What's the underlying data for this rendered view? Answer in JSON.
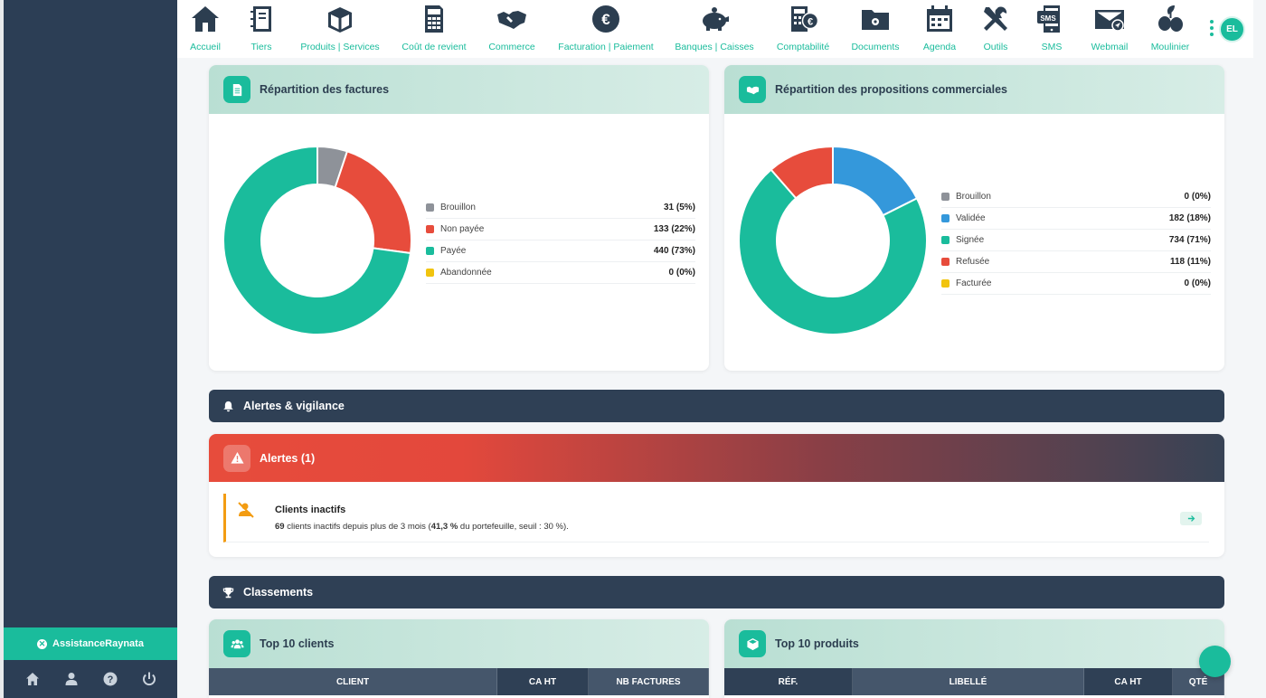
{
  "nav": [
    {
      "label": "Accueil",
      "icon": "home-icon"
    },
    {
      "label": "Tiers",
      "icon": "address-book-icon"
    },
    {
      "label": "Produits | Services",
      "icon": "box-icon"
    },
    {
      "label": "Coût de revient",
      "icon": "calculator-icon"
    },
    {
      "label": "Commerce",
      "icon": "handshake-icon"
    },
    {
      "label": "Facturation | Paiement",
      "icon": "euro-icon"
    },
    {
      "label": "Banques | Caisses",
      "icon": "piggy-bank-icon"
    },
    {
      "label": "Comptabilité",
      "icon": "accounting-icon"
    },
    {
      "label": "Documents",
      "icon": "folder-icon"
    },
    {
      "label": "Agenda",
      "icon": "calendar-icon"
    },
    {
      "label": "Outils",
      "icon": "tools-icon"
    },
    {
      "label": "SMS",
      "icon": "sms-icon"
    },
    {
      "label": "Webmail",
      "icon": "mail-icon"
    },
    {
      "label": "Moulinier",
      "icon": "olive-icon"
    }
  ],
  "user": {
    "initials": "EL"
  },
  "sidebar": {
    "assist_label": "AssistanceRaynata"
  },
  "factures": {
    "title": "Répartition des factures",
    "items": [
      {
        "name": "Brouillon",
        "count": 31,
        "display": "31 (5%)",
        "color": "#8e9299"
      },
      {
        "name": "Non payée",
        "count": 133,
        "display": "133 (22%)",
        "color": "#e74c3c"
      },
      {
        "name": "Payée",
        "count": 440,
        "display": "440 (73%)",
        "color": "#1abc9c"
      },
      {
        "name": "Abandonnée",
        "count": 0,
        "display": "0 (0%)",
        "color": "#f1c40f"
      }
    ]
  },
  "propositions": {
    "title": "Répartition des propositions commerciales",
    "items": [
      {
        "name": "Brouillon",
        "count": 0,
        "display": "0 (0%)",
        "color": "#8e9299"
      },
      {
        "name": "Validée",
        "count": 182,
        "display": "182 (18%)",
        "color": "#3498db"
      },
      {
        "name": "Signée",
        "count": 734,
        "display": "734 (71%)",
        "color": "#1abc9c"
      },
      {
        "name": "Refusée",
        "count": 118,
        "display": "118 (11%)",
        "color": "#e74c3c"
      },
      {
        "name": "Facturée",
        "count": 0,
        "display": "0 (0%)",
        "color": "#f1c40f"
      }
    ]
  },
  "chart_data": [
    {
      "type": "pie",
      "title": "Répartition des factures",
      "categories": [
        "Brouillon",
        "Non payée",
        "Payée",
        "Abandonnée"
      ],
      "values": [
        31,
        133,
        440,
        0
      ]
    },
    {
      "type": "pie",
      "title": "Répartition des propositions commerciales",
      "categories": [
        "Brouillon",
        "Validée",
        "Signée",
        "Refusée",
        "Facturée"
      ],
      "values": [
        0,
        182,
        734,
        118,
        0
      ]
    }
  ],
  "sections": {
    "alertes": "Alertes & vigilance",
    "classements": "Classements"
  },
  "alerts": {
    "header": "Alertes (1)",
    "item": {
      "title": "Clients inactifs",
      "desc_count": "69",
      "desc_mid": " clients inactifs depuis plus de 3 mois (",
      "desc_pct": "41,3 %",
      "desc_end": " du portefeuille, seuil : 30 %)."
    }
  },
  "top_clients": {
    "title": "Top 10 clients",
    "columns": [
      "CLIENT",
      "CA HT",
      "NB FACTURES"
    ]
  },
  "top_produits": {
    "title": "Top 10 produits",
    "columns": [
      "RÉF.",
      "LIBELLÉ",
      "CA HT",
      "QTÉ"
    ]
  }
}
